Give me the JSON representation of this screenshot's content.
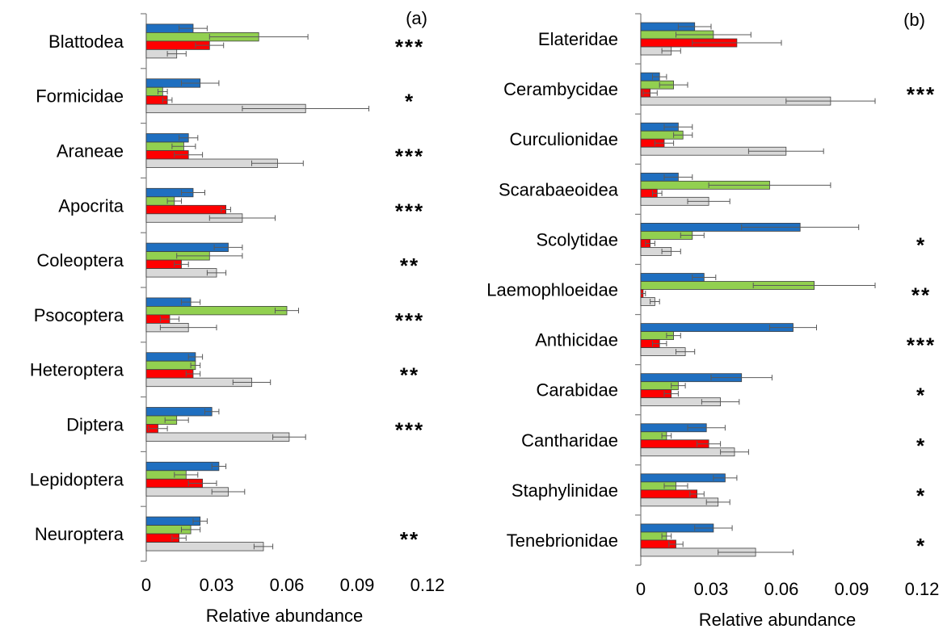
{
  "chart_data": [
    {
      "type": "bar",
      "orientation": "horizontal",
      "panel_label": "(a)",
      "xlabel": "Relative abundance",
      "xlim": [
        0,
        0.12
      ],
      "xticks": [
        "0",
        "0.03",
        "0.06",
        "0.09",
        "0.12"
      ],
      "categories": [
        "Blattodea",
        "Formicidae",
        "Araneae",
        "Apocrita",
        "Coleoptera",
        "Psocoptera",
        "Heteroptera",
        "Diptera",
        "Lepidoptera",
        "Neuroptera"
      ],
      "significance": [
        "***",
        "*",
        "***",
        "***",
        "**",
        "***",
        "**",
        "***",
        "",
        "**"
      ],
      "series": [
        {
          "color": "#1f6fc0",
          "values": [
            0.02,
            0.023,
            0.018,
            0.02,
            0.035,
            0.019,
            0.021,
            0.028,
            0.031,
            0.023
          ],
          "errors": [
            0.006,
            0.008,
            0.004,
            0.005,
            0.006,
            0.004,
            0.003,
            0.003,
            0.003,
            0.003
          ]
        },
        {
          "color": "#92d050",
          "values": [
            0.048,
            0.007,
            0.016,
            0.012,
            0.027,
            0.06,
            0.021,
            0.013,
            0.017,
            0.019
          ],
          "errors": [
            0.021,
            0.002,
            0.005,
            0.003,
            0.014,
            0.005,
            0.002,
            0.005,
            0.005,
            0.004
          ]
        },
        {
          "color": "#ff0000",
          "values": [
            0.027,
            0.009,
            0.018,
            0.034,
            0.015,
            0.01,
            0.02,
            0.005,
            0.024,
            0.014
          ],
          "errors": [
            0.006,
            0.002,
            0.006,
            0.002,
            0.003,
            0.004,
            0.003,
            0.004,
            0.006,
            0.003
          ]
        },
        {
          "color": "#d9d9d9",
          "values": [
            0.013,
            0.068,
            0.056,
            0.041,
            0.03,
            0.018,
            0.045,
            0.061,
            0.035,
            0.05
          ],
          "errors": [
            0.004,
            0.027,
            0.011,
            0.014,
            0.004,
            0.012,
            0.008,
            0.007,
            0.007,
            0.004
          ]
        }
      ]
    },
    {
      "type": "bar",
      "orientation": "horizontal",
      "panel_label": "(b)",
      "xlabel": "Relative abundance",
      "xlim": [
        0,
        0.12
      ],
      "xticks": [
        "0",
        "0.03",
        "0.06",
        "0.09",
        "0.12"
      ],
      "categories": [
        "Elateridae",
        "Cerambycidae",
        "Curculionidae",
        "Scarabaeoidea",
        "Scolytidae",
        "Laemophloeidae",
        "Anthicidae",
        "Carabidae",
        "Cantharidae",
        "Staphylinidae",
        "Tenebrionidae"
      ],
      "significance": [
        "",
        "***",
        "",
        "",
        "*",
        "**",
        "***",
        "*",
        "*",
        "*",
        "*"
      ],
      "series": [
        {
          "color": "#1f6fc0",
          "values": [
            0.023,
            0.008,
            0.016,
            0.016,
            0.068,
            0.027,
            0.065,
            0.043,
            0.028,
            0.036,
            0.031
          ],
          "errors": [
            0.007,
            0.003,
            0.006,
            0.006,
            0.025,
            0.005,
            0.01,
            0.013,
            0.008,
            0.005,
            0.008
          ]
        },
        {
          "color": "#92d050",
          "values": [
            0.031,
            0.014,
            0.018,
            0.055,
            0.022,
            0.074,
            0.014,
            0.016,
            0.011,
            0.015,
            0.011
          ],
          "errors": [
            0.016,
            0.006,
            0.004,
            0.026,
            0.005,
            0.026,
            0.003,
            0.003,
            0.002,
            0.005,
            0.002
          ]
        },
        {
          "color": "#ff0000",
          "values": [
            0.041,
            0.004,
            0.01,
            0.007,
            0.004,
            0.001,
            0.008,
            0.013,
            0.029,
            0.024,
            0.015
          ],
          "errors": [
            0.019,
            0.003,
            0.004,
            0.002,
            0.002,
            0.001,
            0.003,
            0.003,
            0.005,
            0.003,
            0.003
          ]
        },
        {
          "color": "#d9d9d9",
          "values": [
            0.013,
            0.081,
            0.062,
            0.029,
            0.013,
            0.006,
            0.019,
            0.034,
            0.04,
            0.033,
            0.049
          ],
          "errors": [
            0.004,
            0.019,
            0.016,
            0.009,
            0.004,
            0.002,
            0.004,
            0.008,
            0.006,
            0.005,
            0.016
          ]
        }
      ]
    }
  ]
}
